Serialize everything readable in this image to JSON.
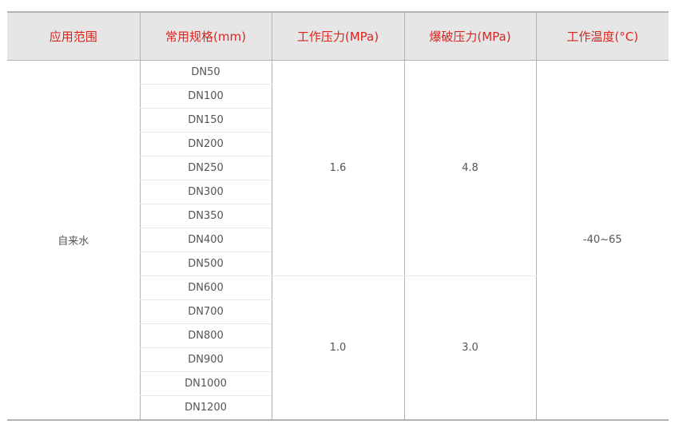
{
  "headers": [
    "应用范围",
    "常用规格(mm)",
    "工作压力(MPa)",
    "爆破压力(MPa)",
    "工作温度(°C)"
  ],
  "application": "自来水",
  "specs": [
    "DN50",
    "DN100",
    "DN150",
    "DN200",
    "DN250",
    "DN300",
    "DN350",
    "DN400",
    "DN500",
    "DN600",
    "DN700",
    "DN800",
    "DN900",
    "DN1000",
    "DN1200"
  ],
  "groups": [
    {
      "working_pressure": "1.6",
      "burst_pressure": "4.8"
    },
    {
      "working_pressure": "1.0",
      "burst_pressure": "3.0"
    }
  ],
  "temperature": "-40~65",
  "colors": {
    "header_text": "#d8261f",
    "header_bg": "#e6e6e6"
  }
}
